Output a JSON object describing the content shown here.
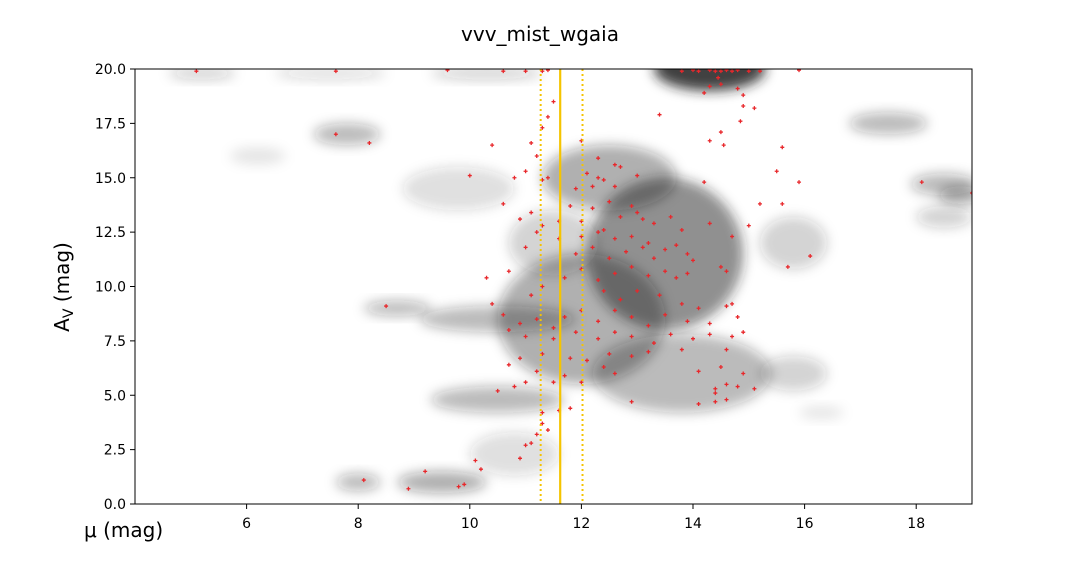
{
  "chart_data": {
    "type": "scatter",
    "title": "vvv_mist_wgaia",
    "xlabel": "μ (mag)",
    "ylabel_main": "A",
    "ylabel_sub": "V",
    "ylabel_unit": " (mag)",
    "xlim": [
      4.0,
      19.0
    ],
    "ylim": [
      0.0,
      20.0
    ],
    "x_ticks": [
      6,
      8,
      10,
      12,
      14,
      16,
      18
    ],
    "x_tick_labels": [
      "6",
      "8",
      "10",
      "12",
      "14",
      "16",
      "18"
    ],
    "y_ticks": [
      0.0,
      2.5,
      5.0,
      7.5,
      10.0,
      12.5,
      15.0,
      17.5,
      20.0
    ],
    "y_tick_labels": [
      "0.0",
      "2.5",
      "5.0",
      "7.5",
      "10.0",
      "12.5",
      "15.0",
      "17.5",
      "20.0"
    ],
    "grid": false,
    "colors": {
      "points": "#e8272b",
      "vlines": "#f5c400",
      "density": "#202020"
    },
    "vertical_lines": [
      {
        "x": 11.62,
        "style": "solid"
      },
      {
        "x": 11.27,
        "style": "dotted"
      },
      {
        "x": 12.02,
        "style": "dotted"
      }
    ],
    "density_blobs": [
      {
        "x": 13.5,
        "y": 11.5,
        "sx": 1.4,
        "sy": 3.5,
        "w": 0.5
      },
      {
        "x": 12.0,
        "y": 8.5,
        "sx": 1.5,
        "sy": 3.0,
        "w": 0.35
      },
      {
        "x": 13.8,
        "y": 6.0,
        "sx": 1.6,
        "sy": 1.8,
        "w": 0.3
      },
      {
        "x": 14.3,
        "y": 20.0,
        "sx": 1.0,
        "sy": 1.0,
        "w": 0.85
      },
      {
        "x": 12.5,
        "y": 15.0,
        "sx": 1.2,
        "sy": 1.5,
        "w": 0.35
      },
      {
        "x": 10.5,
        "y": 4.8,
        "sx": 1.2,
        "sy": 0.6,
        "w": 0.3
      },
      {
        "x": 10.5,
        "y": 8.5,
        "sx": 1.4,
        "sy": 0.6,
        "w": 0.3
      },
      {
        "x": 9.5,
        "y": 1.0,
        "sx": 0.8,
        "sy": 0.5,
        "w": 0.35
      },
      {
        "x": 8.0,
        "y": 1.0,
        "sx": 0.4,
        "sy": 0.4,
        "w": 0.3
      },
      {
        "x": 8.7,
        "y": 9.0,
        "sx": 0.6,
        "sy": 0.35,
        "w": 0.3
      },
      {
        "x": 7.8,
        "y": 17.0,
        "sx": 0.6,
        "sy": 0.5,
        "w": 0.3
      },
      {
        "x": 6.2,
        "y": 16.0,
        "sx": 0.5,
        "sy": 0.4,
        "w": 0.1
      },
      {
        "x": 17.5,
        "y": 17.5,
        "sx": 0.7,
        "sy": 0.5,
        "w": 0.3
      },
      {
        "x": 18.5,
        "y": 14.7,
        "sx": 0.6,
        "sy": 0.5,
        "w": 0.3
      },
      {
        "x": 18.8,
        "y": 14.2,
        "sx": 0.4,
        "sy": 0.4,
        "w": 0.35
      },
      {
        "x": 18.5,
        "y": 13.2,
        "sx": 0.5,
        "sy": 0.5,
        "w": 0.2
      },
      {
        "x": 15.8,
        "y": 12.0,
        "sx": 0.6,
        "sy": 1.2,
        "w": 0.2
      },
      {
        "x": 15.8,
        "y": 6.0,
        "sx": 0.6,
        "sy": 0.8,
        "w": 0.2
      },
      {
        "x": 16.3,
        "y": 4.2,
        "sx": 0.4,
        "sy": 0.3,
        "w": 0.1
      },
      {
        "x": 5.2,
        "y": 19.8,
        "sx": 0.6,
        "sy": 0.3,
        "w": 0.2
      },
      {
        "x": 7.5,
        "y": 19.8,
        "sx": 1.0,
        "sy": 0.3,
        "w": 0.15
      },
      {
        "x": 10.3,
        "y": 19.8,
        "sx": 1.0,
        "sy": 0.3,
        "w": 0.2
      },
      {
        "x": 11.5,
        "y": 12.0,
        "sx": 0.8,
        "sy": 1.5,
        "w": 0.2
      },
      {
        "x": 9.8,
        "y": 14.5,
        "sx": 1.0,
        "sy": 1.0,
        "w": 0.15
      },
      {
        "x": 10.8,
        "y": 2.3,
        "sx": 0.8,
        "sy": 1.0,
        "w": 0.15
      }
    ],
    "points": [
      [
        5.1,
        19.9
      ],
      [
        7.6,
        19.9
      ],
      [
        9.6,
        19.95
      ],
      [
        10.6,
        19.9
      ],
      [
        11.0,
        19.9
      ],
      [
        11.3,
        19.9
      ],
      [
        11.4,
        19.95
      ],
      [
        13.8,
        19.9
      ],
      [
        14.0,
        19.95
      ],
      [
        14.1,
        19.9
      ],
      [
        14.3,
        19.95
      ],
      [
        14.4,
        19.9
      ],
      [
        14.5,
        19.9
      ],
      [
        14.6,
        19.95
      ],
      [
        14.7,
        19.9
      ],
      [
        14.8,
        19.95
      ],
      [
        15.0,
        19.9
      ],
      [
        15.2,
        19.9
      ],
      [
        15.9,
        19.95
      ],
      [
        14.45,
        19.6
      ],
      [
        14.3,
        19.2
      ],
      [
        14.5,
        19.3
      ],
      [
        14.2,
        18.9
      ],
      [
        14.8,
        19.1
      ],
      [
        14.9,
        18.8
      ],
      [
        14.9,
        18.3
      ],
      [
        15.1,
        18.2
      ],
      [
        14.85,
        17.6
      ],
      [
        11.5,
        18.5
      ],
      [
        11.4,
        17.8
      ],
      [
        11.3,
        17.3
      ],
      [
        13.4,
        17.9
      ],
      [
        14.5,
        17.1
      ],
      [
        14.3,
        16.7
      ],
      [
        14.55,
        16.5
      ],
      [
        15.6,
        16.4
      ],
      [
        7.6,
        17.0
      ],
      [
        8.2,
        16.6
      ],
      [
        10.4,
        16.5
      ],
      [
        11.1,
        16.6
      ],
      [
        11.2,
        16.0
      ],
      [
        12.0,
        16.7
      ],
      [
        12.3,
        15.9
      ],
      [
        12.6,
        15.6
      ],
      [
        12.7,
        15.5
      ],
      [
        13.0,
        15.1
      ],
      [
        12.1,
        15.2
      ],
      [
        12.3,
        15.0
      ],
      [
        11.0,
        15.3
      ],
      [
        11.3,
        14.9
      ],
      [
        11.4,
        15.0
      ],
      [
        10.0,
        15.1
      ],
      [
        10.8,
        15.0
      ],
      [
        11.9,
        14.5
      ],
      [
        12.2,
        14.6
      ],
      [
        12.4,
        14.9
      ],
      [
        12.6,
        14.6
      ],
      [
        15.5,
        15.3
      ],
      [
        15.9,
        14.8
      ],
      [
        14.2,
        14.8
      ],
      [
        18.1,
        14.8
      ],
      [
        19.0,
        14.3
      ],
      [
        12.9,
        13.7
      ],
      [
        13.0,
        13.4
      ],
      [
        12.5,
        13.9
      ],
      [
        12.2,
        13.6
      ],
      [
        11.8,
        13.7
      ],
      [
        10.6,
        13.8
      ],
      [
        11.1,
        13.4
      ],
      [
        12.0,
        13.0
      ],
      [
        12.7,
        13.2
      ],
      [
        13.1,
        13.1
      ],
      [
        13.6,
        13.2
      ],
      [
        13.3,
        12.9
      ],
      [
        13.8,
        12.6
      ],
      [
        14.3,
        12.9
      ],
      [
        12.4,
        12.6
      ],
      [
        11.6,
        13.0
      ],
      [
        10.9,
        13.1
      ],
      [
        11.3,
        12.8
      ],
      [
        12.0,
        12.3
      ],
      [
        12.3,
        12.5
      ],
      [
        12.6,
        12.2
      ],
      [
        12.9,
        12.3
      ],
      [
        13.2,
        12.0
      ],
      [
        13.5,
        11.7
      ],
      [
        13.7,
        11.9
      ],
      [
        13.9,
        11.5
      ],
      [
        14.0,
        11.2
      ],
      [
        13.3,
        11.3
      ],
      [
        13.1,
        11.8
      ],
      [
        12.8,
        11.6
      ],
      [
        12.5,
        11.3
      ],
      [
        12.2,
        11.8
      ],
      [
        11.9,
        11.5
      ],
      [
        11.6,
        12.2
      ],
      [
        11.2,
        12.5
      ],
      [
        11.0,
        11.8
      ],
      [
        15.0,
        12.8
      ],
      [
        14.7,
        12.3
      ],
      [
        15.2,
        13.8
      ],
      [
        15.6,
        13.8
      ],
      [
        16.1,
        11.4
      ],
      [
        15.7,
        10.9
      ],
      [
        14.6,
        10.7
      ],
      [
        14.5,
        10.9
      ],
      [
        13.9,
        10.6
      ],
      [
        13.7,
        10.4
      ],
      [
        13.5,
        10.7
      ],
      [
        13.2,
        10.5
      ],
      [
        12.9,
        10.9
      ],
      [
        12.6,
        10.6
      ],
      [
        12.3,
        10.3
      ],
      [
        12.0,
        10.8
      ],
      [
        11.7,
        10.4
      ],
      [
        11.3,
        10.0
      ],
      [
        11.1,
        9.6
      ],
      [
        10.7,
        10.7
      ],
      [
        10.3,
        10.4
      ],
      [
        12.4,
        9.8
      ],
      [
        12.7,
        9.4
      ],
      [
        13.0,
        9.8
      ],
      [
        13.4,
        9.6
      ],
      [
        13.8,
        9.2
      ],
      [
        14.1,
        9.0
      ],
      [
        14.6,
        9.1
      ],
      [
        14.8,
        8.6
      ],
      [
        14.3,
        8.3
      ],
      [
        13.9,
        8.4
      ],
      [
        13.5,
        8.7
      ],
      [
        13.2,
        8.2
      ],
      [
        12.9,
        8.6
      ],
      [
        12.6,
        8.9
      ],
      [
        12.3,
        8.4
      ],
      [
        12.0,
        8.9
      ],
      [
        11.7,
        8.6
      ],
      [
        11.5,
        8.1
      ],
      [
        11.2,
        8.5
      ],
      [
        10.9,
        8.3
      ],
      [
        10.7,
        8.0
      ],
      [
        10.4,
        9.2
      ],
      [
        10.6,
        8.7
      ],
      [
        8.5,
        9.1
      ],
      [
        11.0,
        7.7
      ],
      [
        11.5,
        7.6
      ],
      [
        11.9,
        7.9
      ],
      [
        12.3,
        7.6
      ],
      [
        12.6,
        7.9
      ],
      [
        12.9,
        7.7
      ],
      [
        13.3,
        7.4
      ],
      [
        13.6,
        7.8
      ],
      [
        14.0,
        7.6
      ],
      [
        14.3,
        7.8
      ],
      [
        14.7,
        7.7
      ],
      [
        14.9,
        7.9
      ],
      [
        14.6,
        7.1
      ],
      [
        13.8,
        7.1
      ],
      [
        13.2,
        7.0
      ],
      [
        12.9,
        6.8
      ],
      [
        12.5,
        6.9
      ],
      [
        12.1,
        6.6
      ],
      [
        11.8,
        6.7
      ],
      [
        11.3,
        6.9
      ],
      [
        10.9,
        6.7
      ],
      [
        10.7,
        6.4
      ],
      [
        11.2,
        6.1
      ],
      [
        12.4,
        6.3
      ],
      [
        12.6,
        6.0
      ],
      [
        12.0,
        5.6
      ],
      [
        11.7,
        5.9
      ],
      [
        11.5,
        5.6
      ],
      [
        11.0,
        5.6
      ],
      [
        10.8,
        5.4
      ],
      [
        10.5,
        5.2
      ],
      [
        14.1,
        6.1
      ],
      [
        14.5,
        6.3
      ],
      [
        14.9,
        6.0
      ],
      [
        14.6,
        5.5
      ],
      [
        14.4,
        5.3
      ],
      [
        14.4,
        5.1
      ],
      [
        14.8,
        5.4
      ],
      [
        14.1,
        4.6
      ],
      [
        14.4,
        4.7
      ],
      [
        14.6,
        4.8
      ],
      [
        12.9,
        4.7
      ],
      [
        11.8,
        4.4
      ],
      [
        11.6,
        4.3
      ],
      [
        11.3,
        4.2
      ],
      [
        11.3,
        3.7
      ],
      [
        11.4,
        3.4
      ],
      [
        11.2,
        3.2
      ],
      [
        11.0,
        2.7
      ],
      [
        11.1,
        2.8
      ],
      [
        10.9,
        2.1
      ],
      [
        10.1,
        2.0
      ],
      [
        10.2,
        1.6
      ],
      [
        9.2,
        1.5
      ],
      [
        8.1,
        1.1
      ],
      [
        8.9,
        0.7
      ],
      [
        9.8,
        0.8
      ],
      [
        9.9,
        0.9
      ],
      [
        15.1,
        5.3
      ],
      [
        14.7,
        9.2
      ]
    ]
  }
}
